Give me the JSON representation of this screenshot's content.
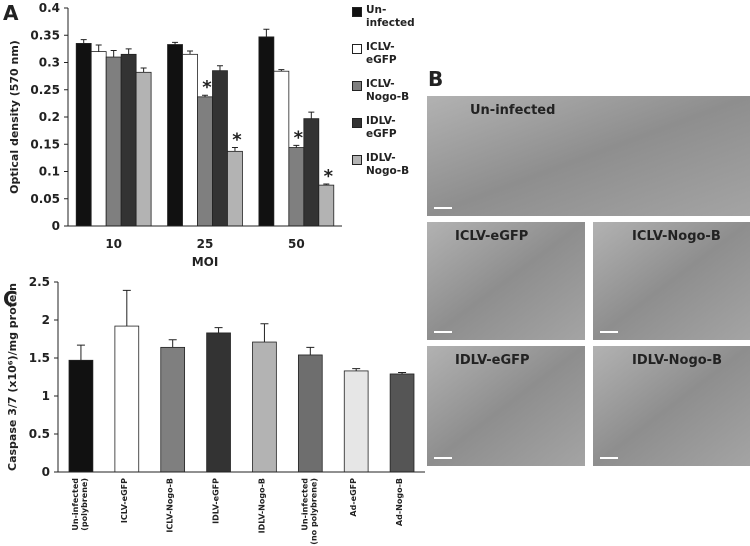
{
  "panel_labels": [
    "A",
    "B",
    "C"
  ],
  "micrographs": [
    "Un-infected",
    "ICLV-eGFP",
    "ICLV-Nogo-B",
    "IDLV-eGFP",
    "IDLV-Nogo-B"
  ],
  "chart_data": [
    {
      "type": "bar",
      "ylabel": "Optical density (570 nm)",
      "xlabel": "MOI",
      "categories": [
        "10",
        "25",
        "50"
      ],
      "ylim": [
        0,
        0.4
      ],
      "yticks": [
        0,
        0.05,
        0.1,
        0.15,
        0.2,
        0.25,
        0.3,
        0.35,
        0.4
      ],
      "series": [
        {
          "name": "Un-infected",
          "color": "#111111",
          "values": [
            0.335,
            0.333,
            0.347
          ],
          "errors": [
            0.007,
            0.004,
            0.014
          ]
        },
        {
          "name": "ICLV-eGFP",
          "color": "#ffffff",
          "values": [
            0.32,
            0.315,
            0.284
          ],
          "errors": [
            0.012,
            0.006,
            0.003
          ]
        },
        {
          "name": "ICLV-Nogo-B",
          "color": "#7f7f7f",
          "values": [
            0.31,
            0.237,
            0.144
          ],
          "errors": [
            0.012,
            0.003,
            0.004
          ],
          "significance": [
            null,
            "*",
            "*"
          ]
        },
        {
          "name": "IDLV-eGFP",
          "color": "#333333",
          "values": [
            0.315,
            0.285,
            0.197
          ],
          "errors": [
            0.01,
            0.009,
            0.012
          ]
        },
        {
          "name": "IDLV-Nogo-B",
          "color": "#b3b3b3",
          "values": [
            0.282,
            0.137,
            0.075
          ],
          "errors": [
            0.008,
            0.007,
            0.002
          ],
          "significance": [
            null,
            "*",
            "*"
          ]
        }
      ]
    },
    {
      "type": "bar",
      "ylabel": "Caspase 3/7 (x10⁶)/mg protein",
      "categories": [
        "Un-infected (polybrene)",
        "ICLV-eGFP",
        "ICLV-Nogo-B",
        "IDLV-eGFP",
        "IDLV-Nogo-B",
        "Un-infected (no polybrene)",
        "Ad-eGFP",
        "Ad-Nogo-B"
      ],
      "ylim": [
        0,
        2.5
      ],
      "yticks": [
        0,
        0.5,
        1,
        1.5,
        2,
        2.5
      ],
      "values": [
        1.47,
        1.92,
        1.64,
        1.83,
        1.71,
        1.54,
        1.33,
        1.29
      ],
      "errors": [
        0.2,
        0.47,
        0.1,
        0.07,
        0.24,
        0.1,
        0.03,
        0.02
      ],
      "colors": [
        "#111111",
        "#ffffff",
        "#7f7f7f",
        "#333333",
        "#b3b3b3",
        "#6e6e6e",
        "#e6e6e6",
        "#555555"
      ]
    }
  ]
}
